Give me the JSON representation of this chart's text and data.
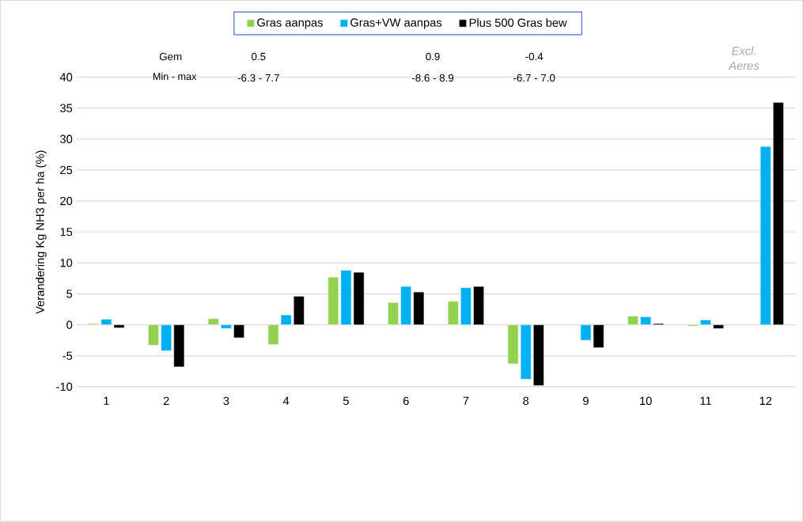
{
  "chart_data": {
    "type": "bar",
    "ylabel": "Verandering Kg NH3 per ha (%)",
    "categories": [
      "1",
      "2",
      "3",
      "4",
      "5",
      "6",
      "7",
      "8",
      "9",
      "10",
      "11",
      "12"
    ],
    "series": [
      {
        "name": "Gras aanpas",
        "color": "#92d050",
        "values": [
          0.2,
          -3.3,
          1.0,
          -3.2,
          7.7,
          3.6,
          3.8,
          -6.3,
          null,
          1.4,
          -0.2,
          null
        ]
      },
      {
        "name": "Gras+VW aanpas",
        "color": "#00b0f0",
        "values": [
          0.9,
          -4.2,
          -0.6,
          1.6,
          8.8,
          6.2,
          6.0,
          -8.8,
          -2.5,
          1.3,
          0.8,
          28.8
        ]
      },
      {
        "name": "Plus 500 Gras bew",
        "color": "#000000",
        "values": [
          -0.5,
          -6.8,
          -2.1,
          4.6,
          8.5,
          5.3,
          6.2,
          -9.8,
          -3.7,
          0.2,
          -0.6,
          35.9
        ]
      }
    ],
    "ylim": [
      -10,
      40
    ],
    "yticks": [
      -10,
      -5,
      0,
      5,
      10,
      15,
      20,
      25,
      30,
      35,
      40
    ],
    "grid": "y",
    "legend": "top",
    "annotations": [
      "Gem",
      "0.5",
      "0.9",
      "-0.4",
      "Min - max",
      "-6.3 - 7.7",
      "-8.6 - 8.9",
      "-6.7 - 7.0",
      "Excl. Aeres"
    ]
  }
}
